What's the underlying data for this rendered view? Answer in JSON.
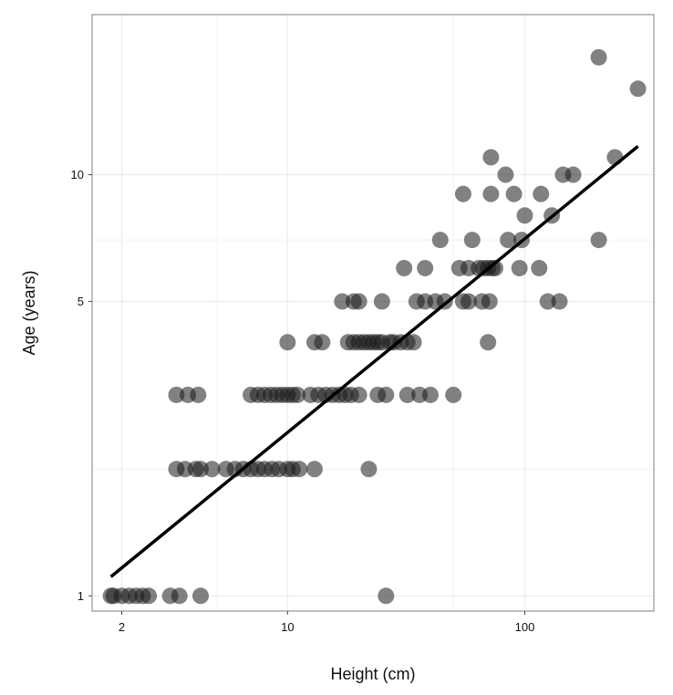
{
  "chart_data": {
    "type": "scatter",
    "title": "",
    "xlabel": "Height (cm)",
    "ylabel": "Age (years)",
    "x_scale": "log",
    "y_scale": "log",
    "xlim": [
      1.5,
      350
    ],
    "ylim": [
      0.92,
      24
    ],
    "x_ticks": [
      2,
      10,
      100
    ],
    "x_tick_labels": [
      "2",
      "10",
      "100"
    ],
    "y_ticks": [
      1,
      5,
      10
    ],
    "y_tick_labels": [
      "1",
      "5",
      "10"
    ],
    "x_minor_ticks": [
      5,
      50
    ],
    "y_minor_ticks": [
      2,
      7
    ],
    "grid": true,
    "legend": "none",
    "colors": {
      "points": "#1a1a1a",
      "point_opacity": 0.55,
      "trend_line": "#000000",
      "panel_border": "#7f7f7f",
      "grid": "#ebebeb"
    },
    "points": [
      {
        "x": 1.8,
        "y": 1
      },
      {
        "x": 1.85,
        "y": 1
      },
      {
        "x": 2.0,
        "y": 1
      },
      {
        "x": 2.15,
        "y": 1
      },
      {
        "x": 2.3,
        "y": 1
      },
      {
        "x": 2.45,
        "y": 1
      },
      {
        "x": 2.6,
        "y": 1
      },
      {
        "x": 3.2,
        "y": 1
      },
      {
        "x": 3.5,
        "y": 1
      },
      {
        "x": 4.3,
        "y": 1
      },
      {
        "x": 26,
        "y": 1
      },
      {
        "x": 3.4,
        "y": 2
      },
      {
        "x": 3.7,
        "y": 2
      },
      {
        "x": 4.1,
        "y": 2
      },
      {
        "x": 4.3,
        "y": 2
      },
      {
        "x": 4.8,
        "y": 2
      },
      {
        "x": 5.5,
        "y": 2
      },
      {
        "x": 6.0,
        "y": 2
      },
      {
        "x": 6.5,
        "y": 2
      },
      {
        "x": 7.0,
        "y": 2
      },
      {
        "x": 7.5,
        "y": 2
      },
      {
        "x": 8.0,
        "y": 2
      },
      {
        "x": 8.6,
        "y": 2
      },
      {
        "x": 9.2,
        "y": 2
      },
      {
        "x": 10.0,
        "y": 2
      },
      {
        "x": 10.5,
        "y": 2
      },
      {
        "x": 11.2,
        "y": 2
      },
      {
        "x": 13.0,
        "y": 2
      },
      {
        "x": 22,
        "y": 2
      },
      {
        "x": 3.4,
        "y": 3
      },
      {
        "x": 3.8,
        "y": 3
      },
      {
        "x": 4.2,
        "y": 3
      },
      {
        "x": 7.0,
        "y": 3
      },
      {
        "x": 7.5,
        "y": 3
      },
      {
        "x": 8.0,
        "y": 3
      },
      {
        "x": 8.5,
        "y": 3
      },
      {
        "x": 9.0,
        "y": 3
      },
      {
        "x": 9.5,
        "y": 3
      },
      {
        "x": 10.0,
        "y": 3
      },
      {
        "x": 10.5,
        "y": 3
      },
      {
        "x": 11.0,
        "y": 3
      },
      {
        "x": 12.5,
        "y": 3
      },
      {
        "x": 13.5,
        "y": 3
      },
      {
        "x": 14.5,
        "y": 3
      },
      {
        "x": 15.5,
        "y": 3
      },
      {
        "x": 16.5,
        "y": 3
      },
      {
        "x": 17.5,
        "y": 3
      },
      {
        "x": 18.5,
        "y": 3
      },
      {
        "x": 20,
        "y": 3
      },
      {
        "x": 24,
        "y": 3
      },
      {
        "x": 26,
        "y": 3
      },
      {
        "x": 32,
        "y": 3
      },
      {
        "x": 36,
        "y": 3
      },
      {
        "x": 40,
        "y": 3
      },
      {
        "x": 50,
        "y": 3
      },
      {
        "x": 10,
        "y": 4
      },
      {
        "x": 13,
        "y": 4
      },
      {
        "x": 14,
        "y": 4
      },
      {
        "x": 18,
        "y": 4
      },
      {
        "x": 19,
        "y": 4
      },
      {
        "x": 20,
        "y": 4
      },
      {
        "x": 21,
        "y": 4
      },
      {
        "x": 22,
        "y": 4
      },
      {
        "x": 23,
        "y": 4
      },
      {
        "x": 24,
        "y": 4
      },
      {
        "x": 25,
        "y": 4
      },
      {
        "x": 27,
        "y": 4
      },
      {
        "x": 28,
        "y": 4
      },
      {
        "x": 30,
        "y": 4
      },
      {
        "x": 32,
        "y": 4
      },
      {
        "x": 34,
        "y": 4
      },
      {
        "x": 70,
        "y": 4
      },
      {
        "x": 17,
        "y": 5
      },
      {
        "x": 19,
        "y": 5
      },
      {
        "x": 20,
        "y": 5
      },
      {
        "x": 25,
        "y": 5
      },
      {
        "x": 35,
        "y": 5
      },
      {
        "x": 38,
        "y": 5
      },
      {
        "x": 42,
        "y": 5
      },
      {
        "x": 46,
        "y": 5
      },
      {
        "x": 55,
        "y": 5
      },
      {
        "x": 58,
        "y": 5
      },
      {
        "x": 66,
        "y": 5
      },
      {
        "x": 71,
        "y": 5
      },
      {
        "x": 125,
        "y": 5
      },
      {
        "x": 140,
        "y": 5
      },
      {
        "x": 31,
        "y": 6
      },
      {
        "x": 38,
        "y": 6
      },
      {
        "x": 53,
        "y": 6
      },
      {
        "x": 58,
        "y": 6
      },
      {
        "x": 64,
        "y": 6
      },
      {
        "x": 67,
        "y": 6
      },
      {
        "x": 70,
        "y": 6
      },
      {
        "x": 73,
        "y": 6
      },
      {
        "x": 75,
        "y": 6
      },
      {
        "x": 95,
        "y": 6
      },
      {
        "x": 115,
        "y": 6
      },
      {
        "x": 44,
        "y": 7
      },
      {
        "x": 60,
        "y": 7
      },
      {
        "x": 85,
        "y": 7
      },
      {
        "x": 97,
        "y": 7
      },
      {
        "x": 205,
        "y": 7
      },
      {
        "x": 100,
        "y": 8
      },
      {
        "x": 130,
        "y": 8
      },
      {
        "x": 55,
        "y": 9
      },
      {
        "x": 72,
        "y": 9
      },
      {
        "x": 90,
        "y": 9
      },
      {
        "x": 117,
        "y": 9
      },
      {
        "x": 83,
        "y": 10
      },
      {
        "x": 145,
        "y": 10
      },
      {
        "x": 160,
        "y": 10
      },
      {
        "x": 72,
        "y": 11
      },
      {
        "x": 240,
        "y": 11
      },
      {
        "x": 300,
        "y": 16
      },
      {
        "x": 205,
        "y": 19
      }
    ],
    "trend_line": {
      "x": [
        1.8,
        300
      ],
      "y": [
        1.11,
        11.68
      ]
    }
  }
}
